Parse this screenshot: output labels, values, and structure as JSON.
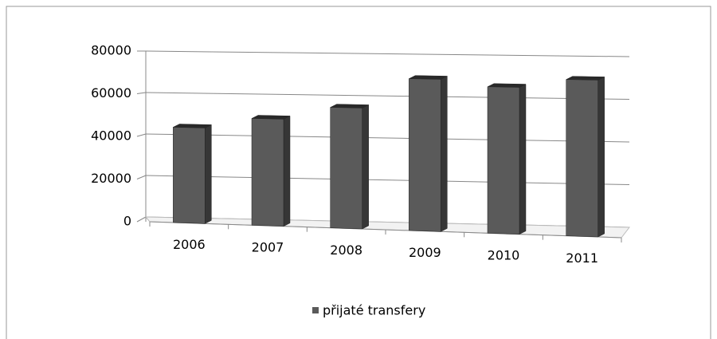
{
  "chart_data": {
    "type": "bar3d",
    "categories": [
      "2006",
      "2007",
      "2008",
      "2009",
      "2010",
      "2011"
    ],
    "series": [
      {
        "name": "přijaté transfery",
        "color": "#5a5a5a",
        "values": [
          45000,
          50000,
          56000,
          70000,
          67000,
          71000
        ]
      }
    ],
    "ylim": [
      0,
      80000
    ],
    "yticks": [
      0,
      20000,
      40000,
      60000,
      80000
    ],
    "grid": true,
    "legend": "bottom"
  }
}
